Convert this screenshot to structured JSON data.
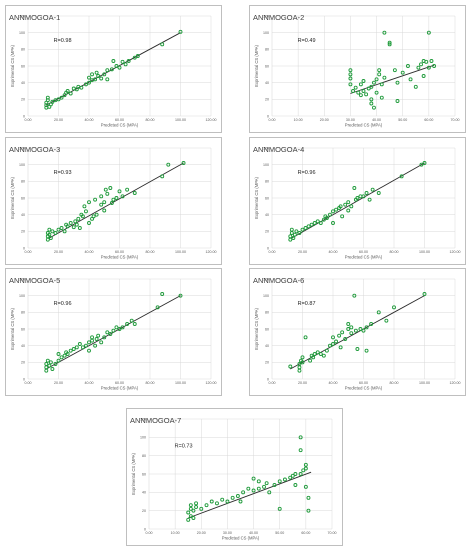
{
  "chart_data": [
    {
      "type": "scatter",
      "title": "ANNMOGOA-1",
      "annotation": "R=0.98",
      "xlabel": "Predicted CS (MPA)",
      "ylabel": "Exprimental CS (MPA)",
      "xlim": [
        0,
        120
      ],
      "ylim": [
        0,
        120
      ],
      "xticks": [
        "0.00",
        "20.00",
        "40.00",
        "60.00",
        "80.00",
        "100.00",
        "120.00"
      ],
      "yticks": [
        "0",
        "20",
        "40",
        "60",
        "80",
        "100",
        "120"
      ],
      "grid": true,
      "trendline": [
        [
          12,
          13
        ],
        [
          100,
          100
        ]
      ],
      "x": [
        12,
        12,
        12,
        13,
        13,
        14,
        15,
        16,
        18,
        20,
        22,
        24,
        25,
        26,
        28,
        30,
        32,
        33,
        35,
        38,
        40,
        40,
        42,
        42,
        44,
        45,
        46,
        48,
        50,
        52,
        52,
        55,
        56,
        58,
        60,
        62,
        64,
        66,
        70,
        72,
        88,
        100
      ],
      "y": [
        10,
        13,
        16,
        19,
        22,
        11,
        14,
        17,
        19,
        20,
        22,
        25,
        28,
        30,
        27,
        33,
        32,
        35,
        34,
        38,
        40,
        46,
        43,
        50,
        44,
        52,
        48,
        45,
        50,
        55,
        44,
        56,
        66,
        60,
        58,
        65,
        62,
        66,
        70,
        72,
        86,
        101
      ]
    },
    {
      "type": "scatter",
      "title": "ANNMOGOA-2",
      "annotation": "R=0.49",
      "xlabel": "Predicted CS (MPA)",
      "ylabel": "Exprimental CS (MPA)",
      "xlim": [
        0,
        70
      ],
      "ylim": [
        0,
        120
      ],
      "xticks": [
        "0.00",
        "10.00",
        "20.00",
        "30.00",
        "40.00",
        "50.00",
        "60.00",
        "70.00"
      ],
      "yticks": [
        "0",
        "20",
        "40",
        "60",
        "80",
        "100",
        "120"
      ],
      "grid": true,
      "trendline": [
        [
          30,
          27
        ],
        [
          62,
          61
        ]
      ],
      "x": [
        30,
        30,
        30,
        30,
        31,
        32,
        33,
        34,
        34,
        35,
        35,
        36,
        37,
        38,
        38,
        38,
        39,
        39,
        40,
        40,
        41,
        41,
        42,
        42,
        43,
        43,
        45,
        45,
        47,
        48,
        48,
        50,
        52,
        53,
        55,
        56,
        57,
        58,
        58,
        59,
        60,
        60,
        61,
        62
      ],
      "y": [
        38,
        45,
        50,
        55,
        30,
        34,
        28,
        25,
        38,
        42,
        30,
        26,
        33,
        35,
        20,
        15,
        10,
        40,
        28,
        44,
        50,
        55,
        22,
        38,
        100,
        46,
        86,
        88,
        55,
        40,
        18,
        52,
        60,
        44,
        35,
        58,
        62,
        48,
        66,
        65,
        100,
        58,
        66,
        60
      ]
    },
    {
      "type": "scatter",
      "title": "ANNMOGOA-3",
      "annotation": "R=0.93",
      "xlabel": "Predicted CS (MPA)",
      "ylabel": "Exprimental CS (MPA)",
      "xlim": [
        0,
        120
      ],
      "ylim": [
        0,
        120
      ],
      "xticks": [
        "0.00",
        "20.00",
        "40.00",
        "60.00",
        "80.00",
        "100.00",
        "120.00"
      ],
      "yticks": [
        "0",
        "20",
        "40",
        "60",
        "80",
        "100",
        "120"
      ],
      "grid": true,
      "trendline": [
        [
          14,
          12
        ],
        [
          102,
          102
        ]
      ],
      "x": [
        13,
        13,
        13,
        14,
        14,
        15,
        16,
        18,
        20,
        22,
        24,
        25,
        26,
        28,
        30,
        31,
        32,
        33,
        34,
        35,
        36,
        37,
        38,
        40,
        40,
        42,
        43,
        44,
        45,
        48,
        48,
        50,
        50,
        51,
        52,
        54,
        55,
        56,
        58,
        60,
        62,
        65,
        70,
        88,
        92,
        102
      ],
      "y": [
        10,
        14,
        18,
        22,
        16,
        12,
        20,
        18,
        22,
        24,
        20,
        28,
        26,
        30,
        25,
        32,
        28,
        35,
        24,
        40,
        38,
        50,
        44,
        55,
        30,
        35,
        38,
        58,
        40,
        52,
        62,
        45,
        55,
        70,
        65,
        72,
        54,
        58,
        60,
        68,
        62,
        70,
        66,
        86,
        100,
        102
      ]
    },
    {
      "type": "scatter",
      "title": "ANNMOGOA-4",
      "annotation": "R=0.96",
      "xlabel": "Predicted CS (MPA)",
      "ylabel": "Exprimental CS (MPA)",
      "xlim": [
        0,
        120
      ],
      "ylim": [
        0,
        120
      ],
      "xticks": [
        "0.00",
        "20.00",
        "40.00",
        "60.00",
        "80.00",
        "100.00",
        "120.00"
      ],
      "yticks": [
        "0",
        "20",
        "40",
        "60",
        "80",
        "100",
        "120"
      ],
      "grid": true,
      "trendline": [
        [
          13,
          12
        ],
        [
          100,
          102
        ]
      ],
      "x": [
        12,
        12,
        13,
        13,
        14,
        15,
        16,
        18,
        20,
        22,
        24,
        26,
        28,
        30,
        32,
        34,
        35,
        36,
        38,
        40,
        40,
        42,
        44,
        45,
        46,
        48,
        50,
        50,
        52,
        54,
        55,
        56,
        58,
        60,
        62,
        64,
        66,
        70,
        85,
        98,
        100
      ],
      "y": [
        10,
        14,
        18,
        22,
        12,
        16,
        20,
        18,
        22,
        24,
        26,
        28,
        30,
        32,
        30,
        34,
        38,
        36,
        40,
        44,
        30,
        46,
        48,
        50,
        38,
        52,
        55,
        45,
        50,
        72,
        58,
        60,
        62,
        62,
        66,
        58,
        70,
        66,
        86,
        100,
        102
      ]
    },
    {
      "type": "scatter",
      "title": "ANNMOGOA-5",
      "annotation": "R=0.96",
      "xlabel": "Predicted CS (MPA)",
      "ylabel": "Exprimental CS (MPA)",
      "xlim": [
        0,
        120
      ],
      "ylim": [
        0,
        120
      ],
      "xticks": [
        "0.00",
        "20.00",
        "40.00",
        "60.00",
        "80.00",
        "100.00",
        "120.00"
      ],
      "yticks": [
        "0",
        "20",
        "40",
        "60",
        "80",
        "100",
        "120"
      ],
      "grid": true,
      "trendline": [
        [
          12,
          12
        ],
        [
          100,
          100
        ]
      ],
      "x": [
        12,
        12,
        12,
        13,
        14,
        15,
        16,
        18,
        20,
        20,
        22,
        24,
        25,
        26,
        28,
        30,
        32,
        34,
        36,
        38,
        40,
        40,
        42,
        42,
        44,
        45,
        46,
        48,
        50,
        52,
        54,
        56,
        58,
        60,
        62,
        65,
        68,
        70,
        85,
        88,
        100
      ],
      "y": [
        10,
        14,
        18,
        22,
        16,
        20,
        12,
        18,
        22,
        30,
        26,
        28,
        32,
        30,
        34,
        36,
        38,
        42,
        38,
        40,
        44,
        34,
        46,
        50,
        40,
        48,
        52,
        44,
        50,
        56,
        54,
        58,
        62,
        60,
        62,
        66,
        70,
        66,
        86,
        102,
        100
      ]
    },
    {
      "type": "scatter",
      "title": "ANNMOGOA-6",
      "annotation": "R=0.87",
      "xlabel": "Predicted CS (MPA)",
      "ylabel": "Exprimental CS (MPA)",
      "xlim": [
        0,
        120
      ],
      "ylim": [
        0,
        120
      ],
      "xticks": [
        "0.00",
        "20.00",
        "40.00",
        "60.00",
        "80.00",
        "100.00",
        "120.00"
      ],
      "yticks": [
        "0",
        "20",
        "40",
        "60",
        "80",
        "100",
        "120"
      ],
      "grid": true,
      "trendline": [
        [
          12,
          12
        ],
        [
          100,
          100
        ]
      ],
      "x": [
        12,
        18,
        18,
        18,
        19,
        20,
        20,
        22,
        25,
        26,
        27,
        28,
        30,
        32,
        34,
        36,
        38,
        40,
        40,
        42,
        44,
        45,
        46,
        48,
        50,
        50,
        52,
        52,
        54,
        55,
        56,
        58,
        60,
        62,
        62,
        65,
        70,
        75,
        80,
        100
      ],
      "y": [
        15,
        10,
        14,
        18,
        22,
        20,
        26,
        50,
        22,
        28,
        26,
        30,
        32,
        30,
        28,
        34,
        40,
        42,
        50,
        45,
        52,
        38,
        56,
        48,
        60,
        66,
        62,
        55,
        100,
        58,
        36,
        60,
        58,
        62,
        34,
        66,
        80,
        70,
        86,
        102
      ]
    },
    {
      "type": "scatter",
      "title": "ANNMOGOA-7",
      "annotation": "R=0.73",
      "xlabel": "Predicted CS (MPA)",
      "ylabel": "Exprimental CS (MPA)",
      "xlim": [
        0,
        70
      ],
      "ylim": [
        0,
        120
      ],
      "xticks": [
        "0.00",
        "10.00",
        "20.00",
        "30.00",
        "40.00",
        "50.00",
        "60.00",
        "70.00"
      ],
      "yticks": [
        "0",
        "20",
        "40",
        "60",
        "80",
        "100",
        "120"
      ],
      "grid": true,
      "trendline": [
        [
          15,
          12
        ],
        [
          62,
          62
        ]
      ],
      "x": [
        15,
        15,
        16,
        16,
        16,
        17,
        17,
        18,
        18,
        20,
        22,
        24,
        26,
        28,
        30,
        32,
        34,
        35,
        36,
        38,
        40,
        40,
        42,
        42,
        44,
        45,
        46,
        48,
        50,
        50,
        52,
        54,
        55,
        56,
        56,
        58,
        58,
        58,
        59,
        60,
        60,
        60,
        61,
        61
      ],
      "y": [
        18,
        10,
        14,
        22,
        26,
        12,
        20,
        24,
        28,
        22,
        26,
        30,
        28,
        32,
        30,
        34,
        36,
        30,
        40,
        44,
        42,
        55,
        44,
        52,
        46,
        50,
        40,
        48,
        22,
        52,
        54,
        56,
        58,
        60,
        48,
        60,
        86,
        100,
        64,
        66,
        46,
        70,
        34,
        20
      ]
    }
  ]
}
